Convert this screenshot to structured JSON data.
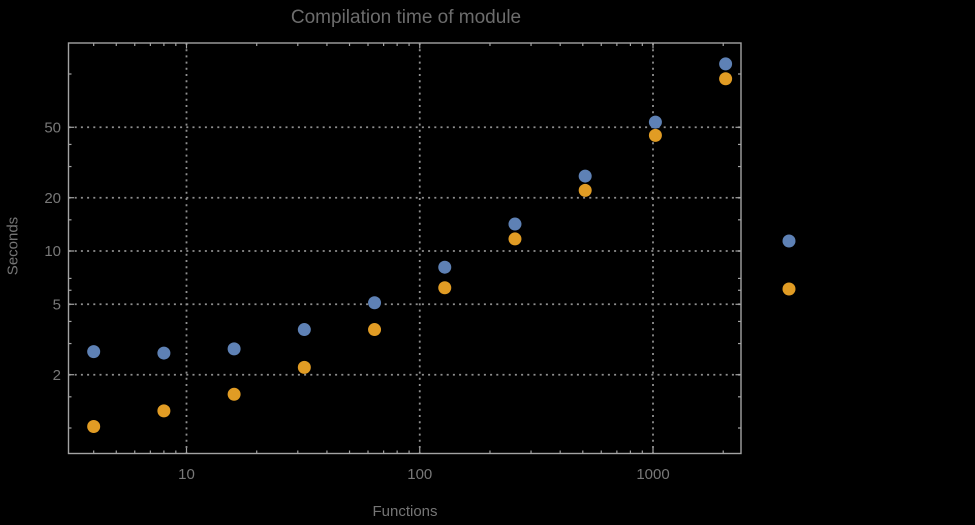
{
  "chart_data": {
    "type": "scatter",
    "title": "Compilation time of module",
    "xlabel": "Functions",
    "ylabel": "Seconds",
    "x_scale": "log",
    "y_scale": "log",
    "xlim": [
      3.2,
      2350
    ],
    "ylim": [
      0.71,
      150
    ],
    "grid": "dotted lines at labeled major ticks",
    "legend_position": "right-outside, markers only (no visible text)",
    "x": [
      4,
      8,
      16,
      32,
      64,
      128,
      256,
      512,
      1024,
      2048
    ],
    "series": [
      {
        "name": "blue-series",
        "color": "#5e81b5",
        "values": [
          2.7,
          2.65,
          2.8,
          3.6,
          5.1,
          8.1,
          14.2,
          26.5,
          53.5,
          114
        ]
      },
      {
        "name": "orange-series",
        "color": "#e19c24",
        "values": [
          1.02,
          1.25,
          1.55,
          2.2,
          3.6,
          6.2,
          11.7,
          22,
          45,
          94
        ]
      }
    ],
    "x_ticks": [
      10,
      100,
      1000
    ],
    "x_minor_ticks": [
      4,
      5,
      6,
      7,
      8,
      9,
      20,
      30,
      40,
      50,
      60,
      70,
      80,
      90,
      200,
      300,
      400,
      500,
      600,
      700,
      800,
      900,
      2000
    ],
    "y_ticks": [
      2,
      5,
      10,
      20,
      50
    ],
    "y_minor_ticks": [
      1,
      1.5,
      3,
      4,
      6,
      7,
      15,
      30,
      40,
      100
    ],
    "colors": {
      "background": "#000000",
      "frame": "#a3a3a3",
      "grid": "#8f8f8f",
      "tick_label": "#787878",
      "title": "#6c6c6c",
      "axis_label": "#757575"
    }
  }
}
